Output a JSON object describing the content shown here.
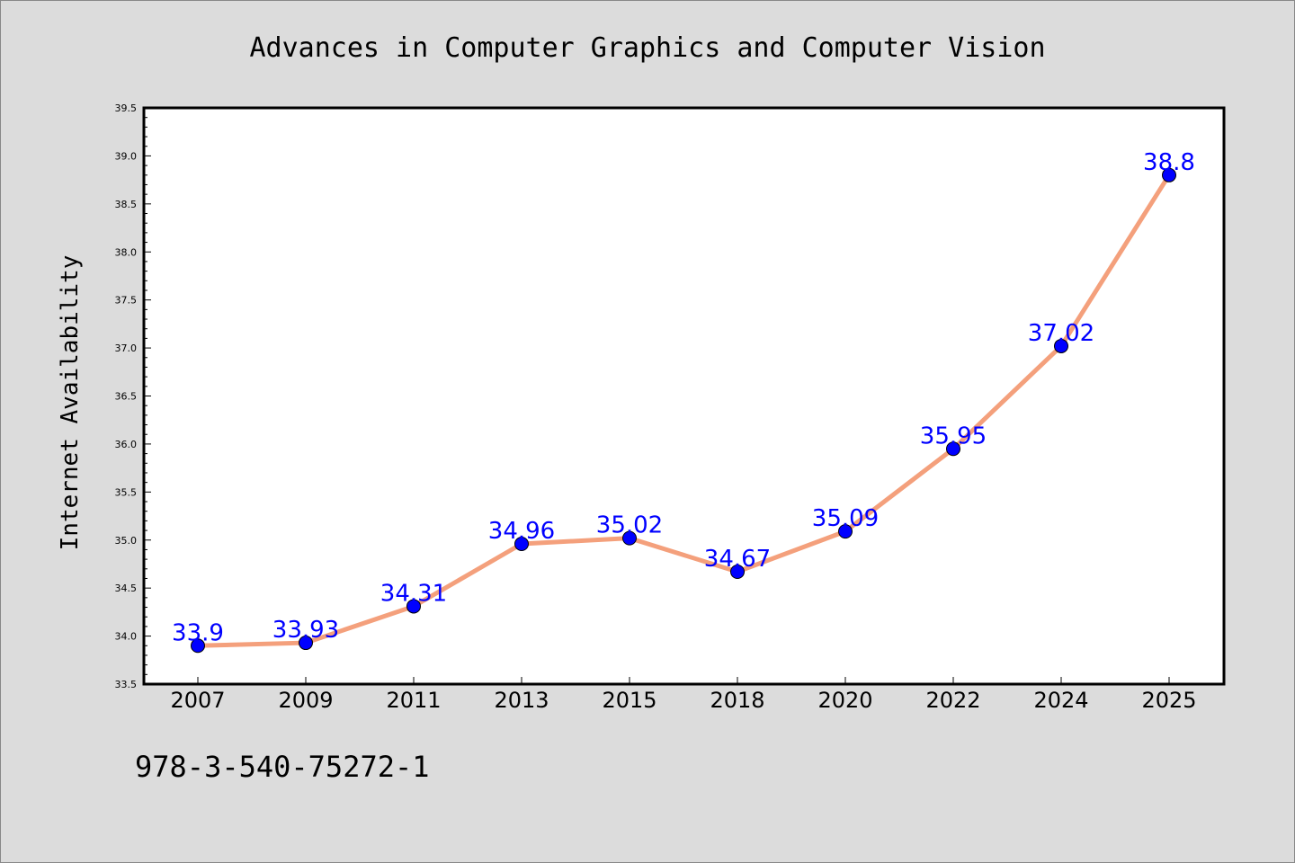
{
  "chart_data": {
    "type": "line",
    "title": "Advances in Computer Graphics and Computer Vision",
    "xlabel": "",
    "ylabel": "Internet Availability",
    "categories": [
      "2007",
      "2009",
      "2011",
      "2013",
      "2015",
      "2018",
      "2020",
      "2022",
      "2024",
      "2025"
    ],
    "values": [
      33.9,
      33.93,
      34.31,
      34.96,
      35.02,
      34.67,
      35.09,
      35.95,
      37.02,
      38.8
    ],
    "data_labels": [
      "33.9",
      "33.93",
      "34.31",
      "34.96",
      "35.02",
      "34.67",
      "35.09",
      "35.95",
      "37.02",
      "38.8"
    ],
    "ylim": [
      33.5,
      39.5
    ],
    "yticks": [
      "33.5",
      "34.0",
      "34.5",
      "35.0",
      "35.5",
      "36.0",
      "36.5",
      "37.0",
      "37.5",
      "38.0",
      "38.5",
      "39.0",
      "39.5"
    ],
    "grid": false,
    "colors": {
      "line": "#f4a07c",
      "marker": "#0000ff",
      "label": "#0000ff",
      "background": "#dcdcdc",
      "plot_bg": "#ffffff"
    }
  },
  "annotation": "978-3-540-75272-1"
}
